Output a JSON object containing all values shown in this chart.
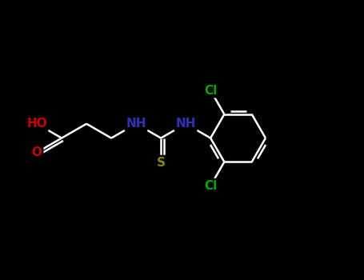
{
  "background_color": "#000000",
  "atom_colors": {
    "C": "#ffffff",
    "N": "#3030bb",
    "O": "#cc0000",
    "S": "#888800",
    "Cl": "#00aa00",
    "H": "#ffffff"
  },
  "bond_color": "#ffffff",
  "bond_width": 1.8,
  "font_size_atom": 11,
  "figsize": [
    4.55,
    3.5
  ],
  "dpi": 100,
  "xlim": [
    0,
    9.5
  ],
  "ylim": [
    1.0,
    6.5
  ]
}
